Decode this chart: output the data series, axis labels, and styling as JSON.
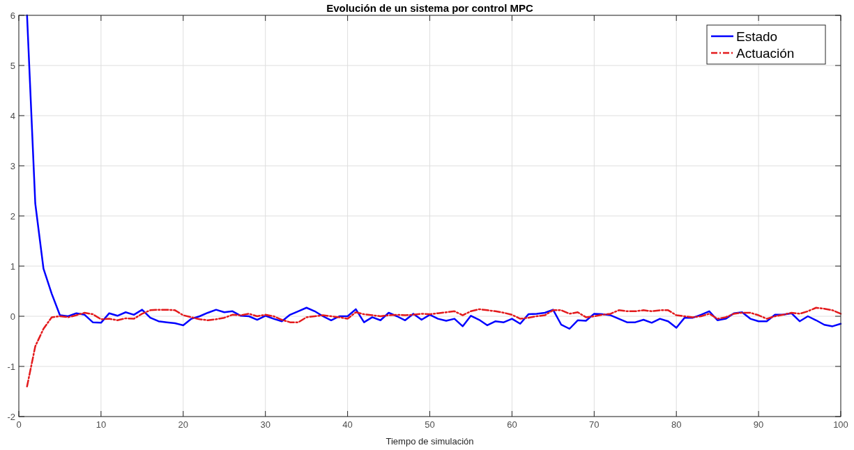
{
  "chart_data": {
    "type": "line",
    "title": "Evolución de un sistema por control MPC",
    "xlabel": "Tiempo de simulación",
    "x": [
      1,
      2,
      3,
      4,
      5,
      6,
      7,
      8,
      9,
      10,
      11,
      12,
      13,
      14,
      15,
      16,
      17,
      18,
      19,
      20,
      21,
      22,
      23,
      24,
      25,
      26,
      27,
      28,
      29,
      30,
      31,
      32,
      33,
      34,
      35,
      36,
      37,
      38,
      39,
      40,
      41,
      42,
      43,
      44,
      45,
      46,
      47,
      48,
      49,
      50,
      51,
      52,
      53,
      54,
      55,
      56,
      57,
      58,
      59,
      60,
      61,
      62,
      63,
      64,
      65,
      66,
      67,
      68,
      69,
      70,
      71,
      72,
      73,
      74,
      75,
      76,
      77,
      78,
      79,
      80,
      81,
      82,
      83,
      84,
      85,
      86,
      87,
      88,
      89,
      90,
      91,
      92,
      93,
      94,
      95,
      96,
      97,
      98,
      99,
      100
    ],
    "series": [
      {
        "name": "Estado",
        "color": "#0000ff",
        "line_style": "solid",
        "values": [
          6,
          2.25,
          0.95,
          0.45,
          0.02,
          0,
          0.06,
          0.03,
          -0.12,
          -0.13,
          0.06,
          0.01,
          0.08,
          0.03,
          0.13,
          -0.03,
          -0.1,
          -0.12,
          -0.14,
          -0.18,
          -0.05,
          0,
          0.07,
          0.13,
          0.08,
          0.1,
          0.01,
          0,
          -0.07,
          0.01,
          -0.05,
          -0.1,
          0.03,
          0.1,
          0.17,
          0.1,
          0,
          -0.08,
          0,
          0,
          0.14,
          -0.12,
          -0.02,
          -0.08,
          0.07,
          0,
          -0.08,
          0.05,
          -0.07,
          0.03,
          -0.05,
          -0.09,
          -0.05,
          -0.2,
          0.01,
          -0.07,
          -0.18,
          -0.1,
          -0.12,
          -0.05,
          -0.15,
          0.04,
          0.05,
          0.07,
          0.13,
          -0.17,
          -0.25,
          -0.08,
          -0.09,
          0.05,
          0.04,
          0.02,
          -0.05,
          -0.12,
          -0.12,
          -0.07,
          -0.13,
          -0.05,
          -0.1,
          -0.23,
          -0.03,
          -0.03,
          0.03,
          0.1,
          -0.08,
          -0.05,
          0.06,
          0.08,
          -0.05,
          -0.1,
          -0.1,
          0.03,
          0.03,
          0.06,
          -0.1,
          0,
          -0.08,
          -0.17,
          -0.2,
          -0.15
        ]
      },
      {
        "name": "Actuación",
        "color": "#e31a1c",
        "line_style": "dashed",
        "values": [
          -1.4,
          -0.6,
          -0.25,
          -0.02,
          0,
          -0.02,
          0.02,
          0.07,
          0.04,
          -0.06,
          -0.05,
          -0.08,
          -0.04,
          -0.05,
          0.05,
          0.12,
          0.13,
          0.13,
          0.12,
          0.02,
          -0.02,
          -0.06,
          -0.08,
          -0.06,
          -0.03,
          0.03,
          0.02,
          0.05,
          0,
          0.03,
          0,
          -0.07,
          -0.12,
          -0.12,
          -0.02,
          0,
          0.02,
          0,
          -0.02,
          -0.05,
          0.08,
          0.04,
          0.02,
          0,
          0.02,
          0.03,
          0.02,
          0.03,
          0.05,
          0.04,
          0.06,
          0.08,
          0.1,
          0.02,
          0.1,
          0.14,
          0.12,
          0.1,
          0.07,
          0.03,
          -0.05,
          -0.03,
          0,
          0.02,
          0.12,
          0.12,
          0.05,
          0.08,
          -0.02,
          0,
          0.03,
          0.05,
          0.12,
          0.1,
          0.1,
          0.12,
          0.1,
          0.12,
          0.12,
          0.02,
          0,
          -0.02,
          0,
          0.05,
          -0.05,
          -0.02,
          0.05,
          0.07,
          0.07,
          0.02,
          -0.05,
          0,
          0.03,
          0.07,
          0.05,
          0.1,
          0.17,
          0.15,
          0.12,
          0.05
        ]
      }
    ],
    "xlim": [
      0,
      100
    ],
    "xticks": [
      0,
      10,
      20,
      30,
      40,
      50,
      60,
      70,
      80,
      90,
      100
    ],
    "ylim": [
      -2,
      6
    ],
    "yticks": [
      -2,
      -1,
      0,
      1,
      2,
      3,
      4,
      5,
      6
    ],
    "grid": true,
    "legend": "top right",
    "marker": "none"
  }
}
